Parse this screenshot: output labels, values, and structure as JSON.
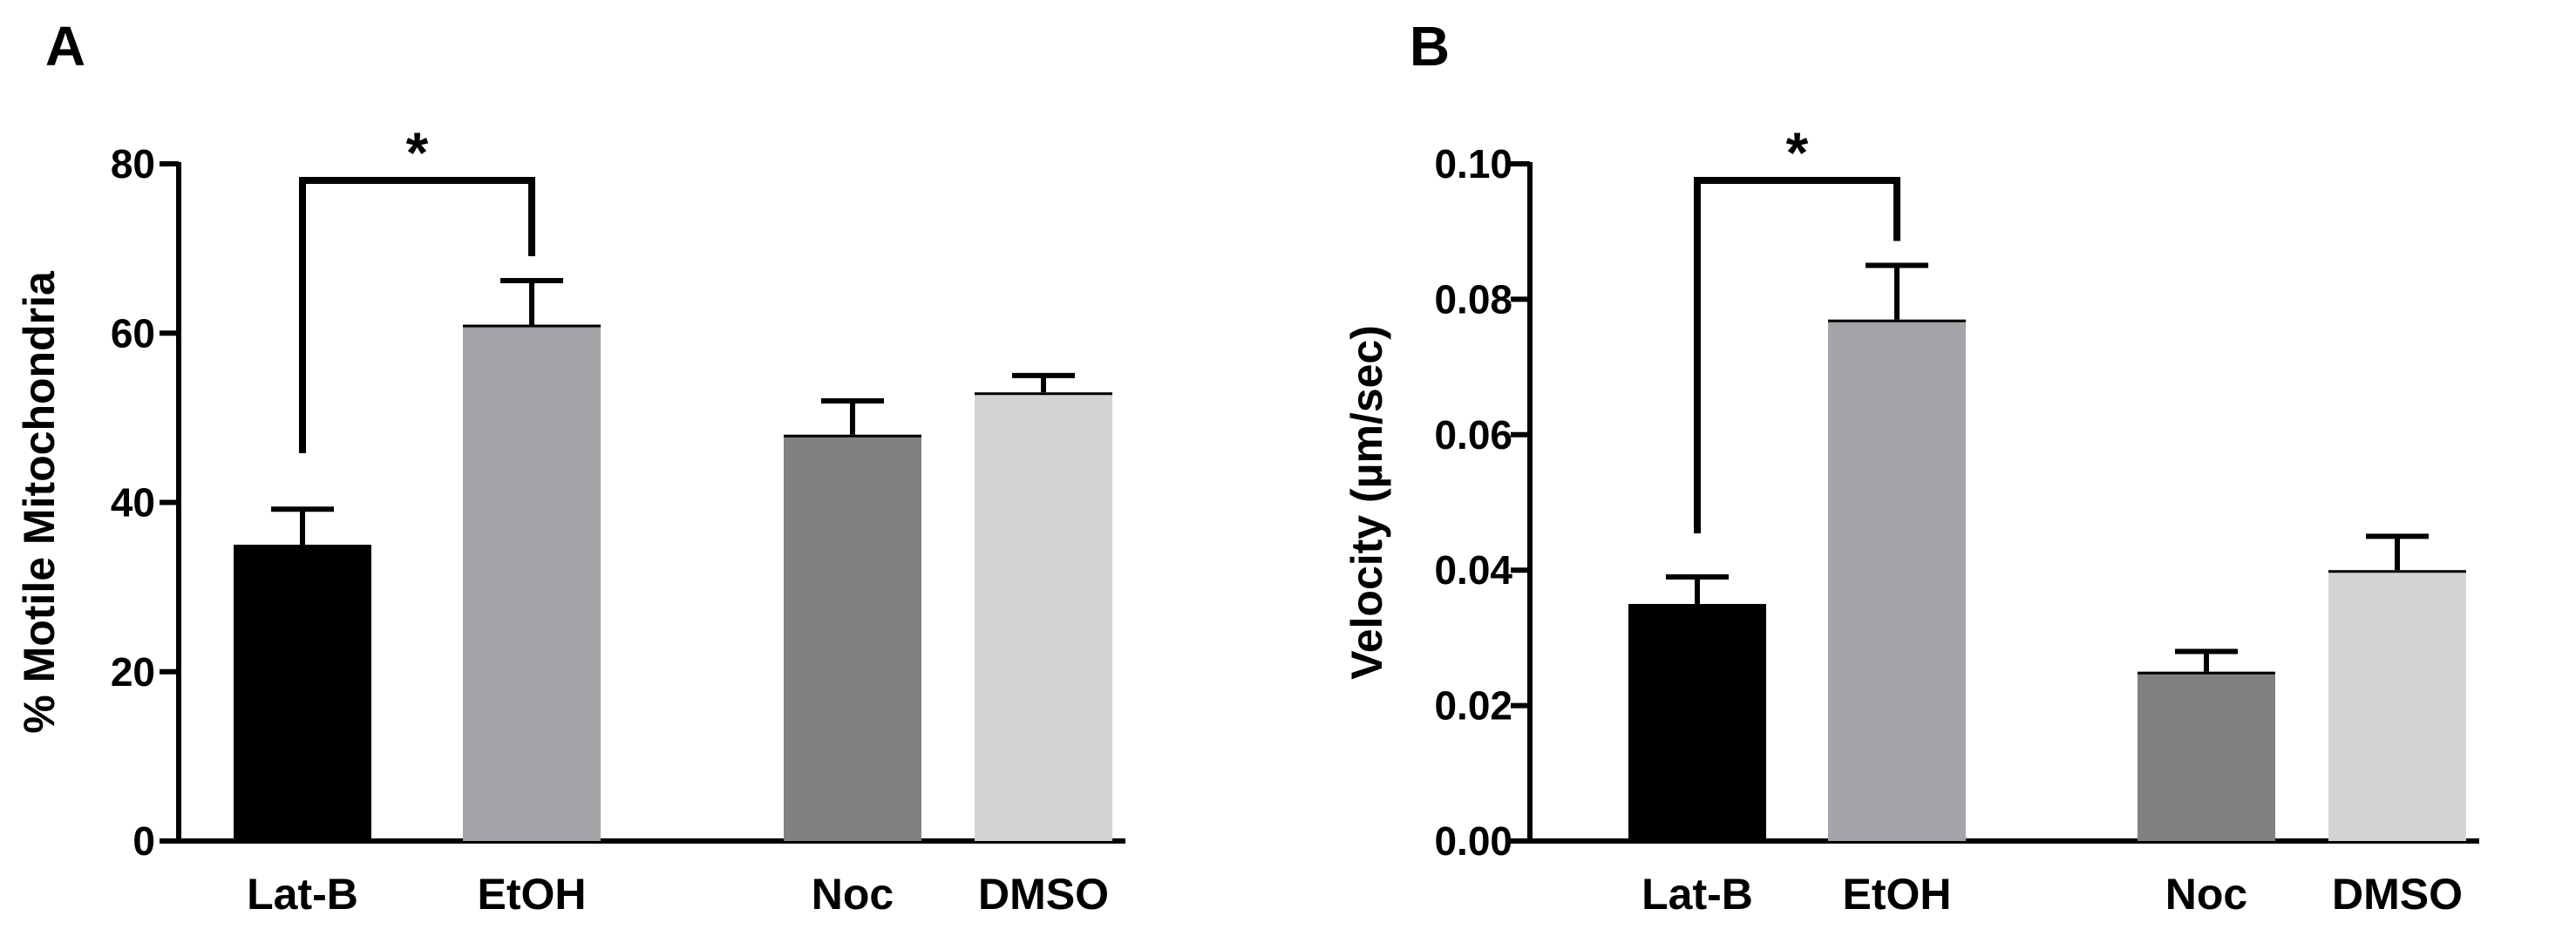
{
  "chart_data": [
    {
      "panel_label": "A",
      "type": "bar",
      "categories": [
        "Lat-B",
        "EtOH",
        "Noc",
        "DMSO"
      ],
      "values": [
        35,
        61,
        48,
        53
      ],
      "errors": [
        4.2,
        5.2,
        4.0,
        2.0
      ],
      "colors": [
        "#000000",
        "#a3a3a8",
        "#808080",
        "#d4d4d4"
      ],
      "title": "",
      "xlabel": "",
      "ylabel": "% Motile Mitochondria",
      "ylim": [
        0,
        80
      ],
      "yticks": [
        "0",
        "20",
        "40",
        "60",
        "80"
      ],
      "significance": {
        "from": 0,
        "to": 1,
        "label": "*"
      }
    },
    {
      "panel_label": "B",
      "type": "bar",
      "categories": [
        "Lat-B",
        "EtOH",
        "Noc",
        "DMSO"
      ],
      "values": [
        0.035,
        0.077,
        0.025,
        0.04
      ],
      "errors": [
        0.004,
        0.008,
        0.003,
        0.005
      ],
      "colors": [
        "#000000",
        "#a3a3a8",
        "#808080",
        "#d4d4d4"
      ],
      "title": "",
      "xlabel": "",
      "ylabel": "Velocity (µm/sec)",
      "ylim": [
        0,
        0.1
      ],
      "yticks": [
        "0.00",
        "0.02",
        "0.04",
        "0.06",
        "0.08",
        "0.10"
      ],
      "significance": {
        "from": 0,
        "to": 1,
        "label": "*"
      }
    }
  ]
}
